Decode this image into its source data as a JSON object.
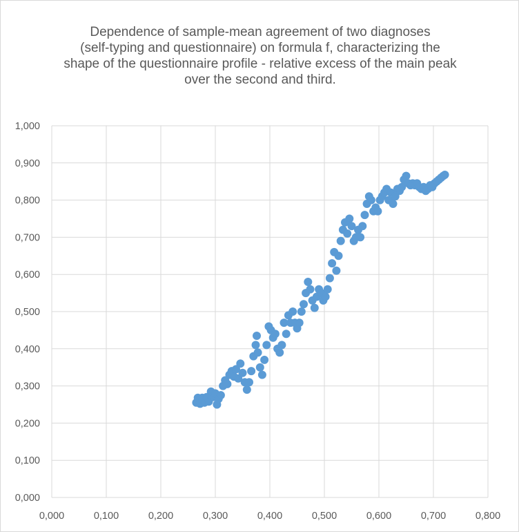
{
  "chart_data": {
    "type": "scatter",
    "title_lines": [
      "Dependence of sample-mean agreement of two diagnoses",
      "(self-typing and questionnaire) on formula f, characterizing the",
      "shape of the questionnaire profile - relative excess of the main peak",
      "over the second and third."
    ],
    "xlabel": "",
    "ylabel": "",
    "xlim": [
      0,
      0.8
    ],
    "ylim": [
      0,
      1
    ],
    "x_ticks": [
      0,
      0.1,
      0.2,
      0.3,
      0.4,
      0.5,
      0.6,
      0.7,
      0.8
    ],
    "x_tick_labels": [
      "0,000",
      "0,100",
      "0,200",
      "0,300",
      "0,400",
      "0,500",
      "0,600",
      "0,700",
      "0,800"
    ],
    "y_ticks": [
      0,
      0.1,
      0.2,
      0.3,
      0.4,
      0.5,
      0.6,
      0.7,
      0.8,
      0.9,
      1.0
    ],
    "y_tick_labels": [
      "0,000",
      "0,100",
      "0,200",
      "0,300",
      "0,400",
      "0,500",
      "0,600",
      "0,700",
      "0,800",
      "0,900",
      "1,000"
    ],
    "grid": true,
    "marker_color": "#5B9BD5",
    "points": [
      [
        0.265,
        0.255
      ],
      [
        0.268,
        0.268
      ],
      [
        0.272,
        0.252
      ],
      [
        0.276,
        0.268
      ],
      [
        0.28,
        0.255
      ],
      [
        0.284,
        0.27
      ],
      [
        0.288,
        0.258
      ],
      [
        0.292,
        0.285
      ],
      [
        0.296,
        0.27
      ],
      [
        0.3,
        0.28
      ],
      [
        0.303,
        0.25
      ],
      [
        0.306,
        0.265
      ],
      [
        0.31,
        0.275
      ],
      [
        0.314,
        0.3
      ],
      [
        0.318,
        0.315
      ],
      [
        0.322,
        0.305
      ],
      [
        0.326,
        0.33
      ],
      [
        0.33,
        0.34
      ],
      [
        0.334,
        0.325
      ],
      [
        0.338,
        0.345
      ],
      [
        0.342,
        0.32
      ],
      [
        0.346,
        0.36
      ],
      [
        0.35,
        0.335
      ],
      [
        0.354,
        0.31
      ],
      [
        0.358,
        0.29
      ],
      [
        0.362,
        0.31
      ],
      [
        0.366,
        0.34
      ],
      [
        0.37,
        0.38
      ],
      [
        0.374,
        0.41
      ],
      [
        0.376,
        0.435
      ],
      [
        0.378,
        0.39
      ],
      [
        0.382,
        0.35
      ],
      [
        0.386,
        0.33
      ],
      [
        0.39,
        0.37
      ],
      [
        0.394,
        0.41
      ],
      [
        0.398,
        0.46
      ],
      [
        0.402,
        0.45
      ],
      [
        0.406,
        0.43
      ],
      [
        0.41,
        0.44
      ],
      [
        0.414,
        0.4
      ],
      [
        0.418,
        0.39
      ],
      [
        0.422,
        0.41
      ],
      [
        0.426,
        0.47
      ],
      [
        0.43,
        0.44
      ],
      [
        0.434,
        0.49
      ],
      [
        0.438,
        0.47
      ],
      [
        0.442,
        0.5
      ],
      [
        0.446,
        0.47
      ],
      [
        0.45,
        0.455
      ],
      [
        0.454,
        0.47
      ],
      [
        0.458,
        0.5
      ],
      [
        0.462,
        0.52
      ],
      [
        0.466,
        0.55
      ],
      [
        0.47,
        0.58
      ],
      [
        0.474,
        0.56
      ],
      [
        0.478,
        0.53
      ],
      [
        0.482,
        0.51
      ],
      [
        0.486,
        0.54
      ],
      [
        0.49,
        0.56
      ],
      [
        0.494,
        0.55
      ],
      [
        0.498,
        0.53
      ],
      [
        0.502,
        0.54
      ],
      [
        0.506,
        0.56
      ],
      [
        0.51,
        0.59
      ],
      [
        0.514,
        0.63
      ],
      [
        0.518,
        0.66
      ],
      [
        0.522,
        0.61
      ],
      [
        0.526,
        0.65
      ],
      [
        0.53,
        0.69
      ],
      [
        0.534,
        0.72
      ],
      [
        0.538,
        0.74
      ],
      [
        0.542,
        0.71
      ],
      [
        0.546,
        0.75
      ],
      [
        0.55,
        0.73
      ],
      [
        0.554,
        0.69
      ],
      [
        0.558,
        0.7
      ],
      [
        0.562,
        0.72
      ],
      [
        0.566,
        0.7
      ],
      [
        0.57,
        0.73
      ],
      [
        0.574,
        0.76
      ],
      [
        0.578,
        0.79
      ],
      [
        0.582,
        0.81
      ],
      [
        0.586,
        0.8
      ],
      [
        0.59,
        0.77
      ],
      [
        0.594,
        0.78
      ],
      [
        0.598,
        0.77
      ],
      [
        0.602,
        0.8
      ],
      [
        0.606,
        0.81
      ],
      [
        0.61,
        0.82
      ],
      [
        0.614,
        0.83
      ],
      [
        0.618,
        0.8
      ],
      [
        0.622,
        0.82
      ],
      [
        0.626,
        0.79
      ],
      [
        0.63,
        0.81
      ],
      [
        0.634,
        0.83
      ],
      [
        0.638,
        0.825
      ],
      [
        0.642,
        0.835
      ],
      [
        0.646,
        0.855
      ],
      [
        0.65,
        0.865
      ],
      [
        0.654,
        0.845
      ],
      [
        0.658,
        0.84
      ],
      [
        0.662,
        0.845
      ],
      [
        0.666,
        0.84
      ],
      [
        0.67,
        0.845
      ],
      [
        0.674,
        0.835
      ],
      [
        0.678,
        0.83
      ],
      [
        0.682,
        0.835
      ],
      [
        0.686,
        0.825
      ],
      [
        0.69,
        0.83
      ],
      [
        0.694,
        0.84
      ],
      [
        0.698,
        0.835
      ],
      [
        0.702,
        0.845
      ],
      [
        0.706,
        0.85
      ],
      [
        0.71,
        0.855
      ],
      [
        0.714,
        0.86
      ],
      [
        0.718,
        0.865
      ],
      [
        0.721,
        0.868
      ]
    ]
  }
}
